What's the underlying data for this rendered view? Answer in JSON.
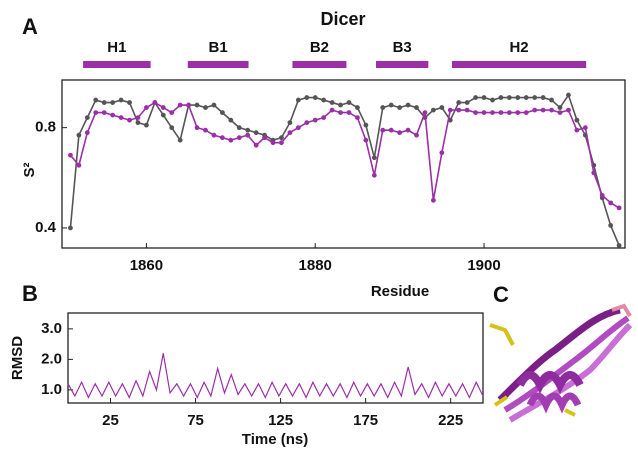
{
  "chart_data": [
    {
      "type": "line",
      "panel_label": "A",
      "title": "Dicer",
      "xlabel": "Residue",
      "ylabel": "S²",
      "x": [
        1851,
        1852,
        1853,
        1854,
        1855,
        1856,
        1857,
        1858,
        1859,
        1860,
        1861,
        1862,
        1863,
        1864,
        1865,
        1866,
        1867,
        1868,
        1869,
        1870,
        1871,
        1872,
        1873,
        1874,
        1875,
        1876,
        1877,
        1878,
        1879,
        1880,
        1881,
        1882,
        1883,
        1884,
        1885,
        1886,
        1887,
        1888,
        1889,
        1890,
        1891,
        1892,
        1893,
        1894,
        1895,
        1896,
        1897,
        1898,
        1899,
        1900,
        1901,
        1902,
        1903,
        1904,
        1905,
        1906,
        1907,
        1908,
        1909,
        1910,
        1911,
        1912,
        1913,
        1914,
        1915,
        1916
      ],
      "series": [
        {
          "color": "#555555",
          "values": [
            0.4,
            0.77,
            0.84,
            0.91,
            0.9,
            0.9,
            0.91,
            0.9,
            0.82,
            0.81,
            0.9,
            0.85,
            0.8,
            0.75,
            0.89,
            0.89,
            0.88,
            0.89,
            0.86,
            0.83,
            0.8,
            0.79,
            0.78,
            0.77,
            0.75,
            0.76,
            0.82,
            0.91,
            0.92,
            0.92,
            0.91,
            0.9,
            0.89,
            0.9,
            0.88,
            0.81,
            0.68,
            0.88,
            0.89,
            0.88,
            0.89,
            0.88,
            0.84,
            0.87,
            0.88,
            0.83,
            0.9,
            0.9,
            0.92,
            0.92,
            0.91,
            0.92,
            0.92,
            0.92,
            0.92,
            0.92,
            0.92,
            0.91,
            0.88,
            0.93,
            0.83,
            0.77,
            0.65,
            0.52,
            0.41,
            0.33
          ]
        },
        {
          "color": "#9b2fa8",
          "values": [
            0.69,
            0.65,
            0.78,
            0.86,
            0.86,
            0.85,
            0.84,
            0.83,
            0.84,
            0.88,
            0.9,
            0.88,
            0.86,
            0.89,
            0.89,
            0.8,
            0.79,
            0.77,
            0.76,
            0.75,
            0.76,
            0.77,
            0.73,
            0.76,
            0.74,
            0.74,
            0.78,
            0.8,
            0.82,
            0.83,
            0.84,
            0.87,
            0.86,
            0.86,
            0.84,
            0.75,
            0.61,
            0.79,
            0.79,
            0.78,
            0.79,
            0.77,
            0.86,
            0.51,
            0.7,
            0.87,
            0.87,
            0.87,
            0.86,
            0.86,
            0.86,
            0.86,
            0.86,
            0.86,
            0.86,
            0.87,
            0.87,
            0.87,
            0.86,
            0.87,
            0.79,
            0.8,
            0.62,
            0.53,
            0.5,
            0.48
          ]
        }
      ],
      "markers": true,
      "segments": [
        {
          "label": "H1",
          "start": 1852.5,
          "end": 1860.5
        },
        {
          "label": "B1",
          "start": 1864.9,
          "end": 1872.1
        },
        {
          "label": "B2",
          "start": 1877.3,
          "end": 1883.7
        },
        {
          "label": "B3",
          "start": 1887.2,
          "end": 1893.4
        },
        {
          "label": "H2",
          "start": 1896.2,
          "end": 1912.1
        }
      ],
      "segment_color": "#9c2ea6",
      "xlim": [
        1850,
        1916.7
      ],
      "ylim": [
        0.32,
        0.99
      ],
      "xticks": [
        1860,
        1880,
        1900
      ],
      "yticks": [
        0.4,
        0.8
      ]
    },
    {
      "type": "line",
      "panel_label": "B",
      "xlabel": "Time (ns)",
      "ylabel": "RMSD",
      "x": [
        0,
        4,
        8,
        12,
        16,
        20,
        24,
        28,
        32,
        36,
        40,
        44,
        48,
        52,
        56,
        60,
        64,
        68,
        72,
        76,
        80,
        84,
        88,
        92,
        96,
        100,
        104,
        108,
        112,
        116,
        120,
        124,
        128,
        132,
        136,
        140,
        144,
        148,
        152,
        156,
        160,
        164,
        168,
        172,
        176,
        180,
        184,
        188,
        192,
        196,
        200,
        204,
        208,
        212,
        216,
        220,
        224,
        228,
        232,
        236,
        240,
        244
      ],
      "series": [
        {
          "color": "#9b2fa8",
          "values": [
            1.2,
            0.8,
            1.25,
            0.75,
            1.2,
            0.8,
            1.25,
            0.8,
            1.2,
            0.75,
            1.3,
            0.8,
            1.6,
            1.0,
            2.2,
            0.9,
            1.2,
            0.8,
            1.2,
            0.75,
            1.25,
            0.8,
            1.7,
            0.9,
            1.5,
            0.85,
            1.2,
            0.8,
            1.2,
            0.75,
            1.25,
            0.8,
            1.2,
            0.8,
            1.2,
            0.75,
            1.25,
            0.8,
            1.2,
            0.8,
            1.2,
            0.75,
            1.25,
            0.8,
            1.2,
            0.8,
            1.2,
            0.75,
            1.25,
            0.8,
            1.75,
            0.85,
            1.2,
            0.75,
            1.25,
            0.8,
            1.2,
            0.8,
            1.2,
            0.75,
            1.25,
            0.8
          ]
        }
      ],
      "markers": false,
      "xlim": [
        0,
        244
      ],
      "ylim": [
        0.57,
        3.52
      ],
      "xticks": [
        25,
        75,
        125,
        175,
        225
      ],
      "yticks": [
        {
          "value": 1.0,
          "label": "1.0"
        },
        {
          "value": 2.0,
          "label": "2.0"
        },
        {
          "value": 3.0,
          "label": "3.0"
        }
      ]
    }
  ],
  "panel_c": {
    "label": "C"
  }
}
